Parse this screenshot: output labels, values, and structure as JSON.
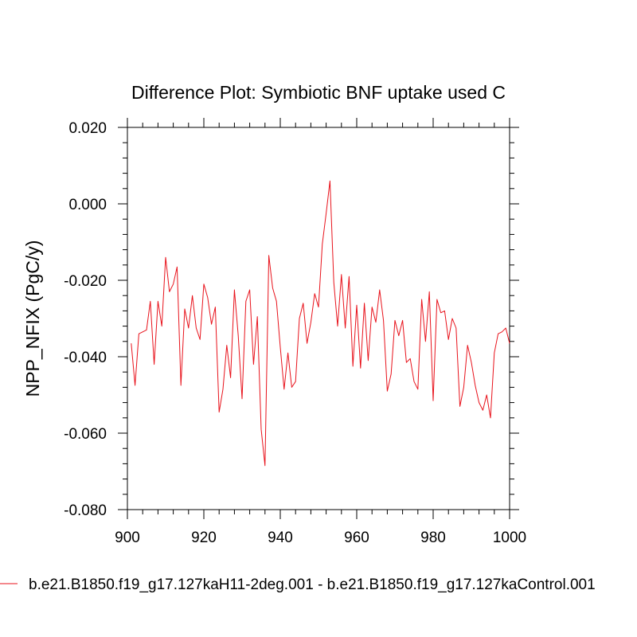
{
  "chart_data": {
    "type": "line",
    "title": "Difference Plot: Symbiotic BNF uptake used C",
    "xlabel": "",
    "ylabel": "NPP_NFIX  (PgC/y)",
    "xlim": [
      900,
      1000
    ],
    "ylim": [
      -0.08,
      0.02
    ],
    "grid": false,
    "legend_position": "bottom",
    "x_ticks": [
      900,
      920,
      940,
      960,
      980,
      1000
    ],
    "x_tick_labels": [
      "900",
      "920",
      "940",
      "960",
      "980",
      "1000"
    ],
    "y_ticks": [
      -0.08,
      -0.06,
      -0.04,
      -0.02,
      0.0,
      0.02
    ],
    "y_tick_labels": [
      "-0.080",
      "-0.060",
      "-0.040",
      "-0.020",
      "0.000",
      "0.020"
    ],
    "x_minor_step": 4,
    "y_minor_step": 0.004,
    "series": [
      {
        "name": "b.e21.B1850.f19_g17.127kaH11-2deg.001 - b.e21.B1850.f19_g17.127kaControl.001",
        "color": "#e8121b",
        "x": [
          901,
          902,
          903,
          904,
          905,
          906,
          907,
          908,
          909,
          910,
          911,
          912,
          913,
          914,
          915,
          916,
          917,
          918,
          919,
          920,
          921,
          922,
          923,
          924,
          925,
          926,
          927,
          928,
          929,
          930,
          931,
          932,
          933,
          934,
          935,
          936,
          937,
          938,
          939,
          940,
          941,
          942,
          943,
          944,
          945,
          946,
          947,
          948,
          949,
          950,
          951,
          952,
          953,
          954,
          955,
          956,
          957,
          958,
          959,
          960,
          961,
          962,
          963,
          964,
          965,
          966,
          967,
          968,
          969,
          970,
          971,
          972,
          973,
          974,
          975,
          976,
          977,
          978,
          979,
          980,
          981,
          982,
          983,
          984,
          985,
          986,
          987,
          988,
          989,
          990,
          991,
          992,
          993,
          994,
          995,
          996,
          997,
          998,
          999,
          1000
        ],
        "values": [
          -0.0365,
          -0.0475,
          -0.034,
          -0.0335,
          -0.033,
          -0.0255,
          -0.042,
          -0.0255,
          -0.032,
          -0.014,
          -0.023,
          -0.021,
          -0.0165,
          -0.0475,
          -0.0275,
          -0.0325,
          -0.024,
          -0.0325,
          -0.0355,
          -0.021,
          -0.0245,
          -0.0315,
          -0.027,
          -0.0545,
          -0.0485,
          -0.037,
          -0.0455,
          -0.0225,
          -0.0345,
          -0.051,
          -0.0255,
          -0.0225,
          -0.042,
          -0.0295,
          -0.059,
          -0.0685,
          -0.0135,
          -0.022,
          -0.0255,
          -0.0375,
          -0.0485,
          -0.039,
          -0.048,
          -0.0465,
          -0.03,
          -0.026,
          -0.0365,
          -0.031,
          -0.0235,
          -0.027,
          -0.0105,
          -0.0025,
          0.006,
          -0.0205,
          -0.032,
          -0.0185,
          -0.0325,
          -0.019,
          -0.0425,
          -0.0265,
          -0.043,
          -0.026,
          -0.041,
          -0.027,
          -0.031,
          -0.0225,
          -0.0305,
          -0.049,
          -0.0445,
          -0.0305,
          -0.0345,
          -0.0305,
          -0.0415,
          -0.0405,
          -0.0465,
          -0.0485,
          -0.025,
          -0.036,
          -0.023,
          -0.0515,
          -0.025,
          -0.0285,
          -0.028,
          -0.0355,
          -0.03,
          -0.0325,
          -0.053,
          -0.048,
          -0.037,
          -0.0415,
          -0.0475,
          -0.052,
          -0.054,
          -0.05,
          -0.056,
          -0.039,
          -0.034,
          -0.0335,
          -0.0325,
          -0.0365
        ]
      }
    ]
  }
}
